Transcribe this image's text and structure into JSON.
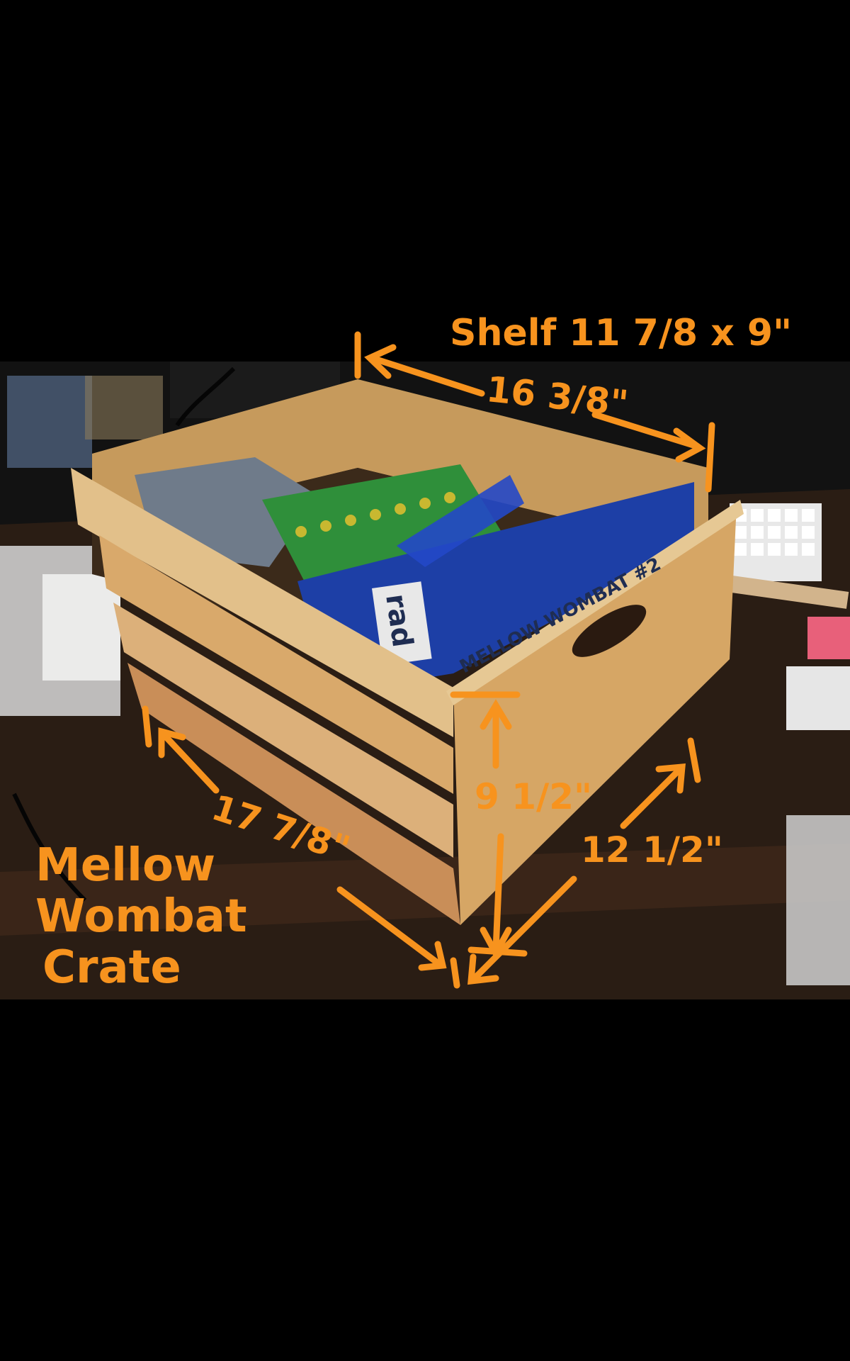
{
  "annotations": {
    "shelf": "Shelf 11 7/8 x 9\"",
    "back_width": "16 3/8\"",
    "height": "9 1/2\"",
    "front_length": "17 7/8\"",
    "depth": "12 1/2\"",
    "title_line1": "Mellow",
    "title_line2": "Wombat",
    "title_line3": "Crate"
  },
  "crate": {
    "side_label": "MELLOW WOMBAT #2",
    "bag_label": "rad"
  },
  "colors": {
    "annotation": "#f7931e",
    "background": "#000000",
    "wood": "#d9a96b",
    "bag": "#1d3fa6",
    "board": "#2f8f3a"
  }
}
